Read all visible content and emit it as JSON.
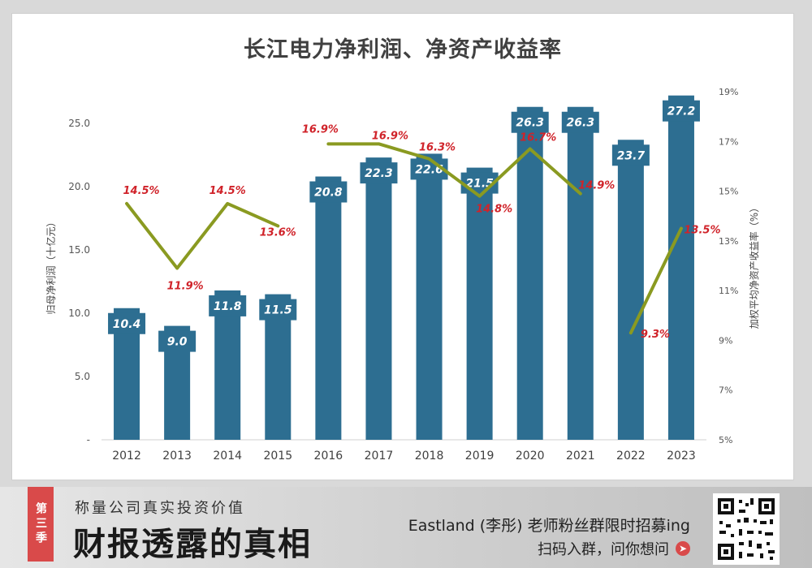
{
  "chart_data": {
    "type": "bar+line",
    "title": "长江电力净利润、净资产收益率",
    "categories": [
      "2012",
      "2013",
      "2014",
      "2015",
      "2016",
      "2017",
      "2018",
      "2019",
      "2020",
      "2021",
      "2022",
      "2023"
    ],
    "series": [
      {
        "name": "归母净利润（十亿元）",
        "type": "bar",
        "axis": "left",
        "values": [
          10.4,
          9.0,
          11.8,
          11.5,
          20.8,
          22.3,
          22.6,
          21.5,
          26.3,
          26.3,
          23.7,
          27.2
        ],
        "labels": [
          "10.4",
          "9.0",
          "11.8",
          "11.5",
          "20.8",
          "22.3",
          "22.6",
          "21.5",
          "26.3",
          "26.3",
          "23.7",
          "27.2"
        ],
        "color": "#2d6e91"
      },
      {
        "name": "加权平均净资产收益率（%）",
        "type": "line",
        "axis": "right",
        "segments": [
          {
            "start": 0,
            "values": [
              14.5,
              11.9,
              14.5,
              13.6
            ]
          },
          {
            "start": 4,
            "values": [
              16.9,
              16.9,
              16.3,
              14.8,
              16.7,
              14.9
            ]
          },
          {
            "start": 10,
            "values": [
              9.3,
              13.5
            ]
          }
        ],
        "labels": [
          "14.5%",
          "11.9%",
          "14.5%",
          "13.6%",
          "16.9%",
          "16.9%",
          "16.3%",
          "14.8%",
          "16.7%",
          "14.9%",
          "9.3%",
          "13.5%"
        ],
        "color": "#8a9a21",
        "label_color": "#d0232a"
      }
    ],
    "ylabel": "归母净利润（十亿元）",
    "y2label": "加权平均净资产收益率（%）",
    "ylim": [
      0,
      27.5
    ],
    "yticks": [
      "-",
      "5.0",
      "10.0",
      "15.0",
      "20.0",
      "25.0"
    ],
    "ytick_values": [
      0,
      5,
      10,
      15,
      20,
      25
    ],
    "y2lim": [
      5,
      19
    ],
    "y2ticks": [
      "5%",
      "7%",
      "9%",
      "11%",
      "13%",
      "15%",
      "17%",
      "19%"
    ],
    "y2tick_values": [
      5,
      7,
      9,
      11,
      13,
      15,
      17,
      19
    ],
    "grid": false,
    "legend": "none"
  },
  "footer": {
    "season_tag": "第三季",
    "subtitle": "称量公司真实投资价值",
    "brand": "财报透露的真相",
    "recruit": "Eastland (李彤) 老师粉丝群限时招募ing",
    "scan": "扫码入群，问你想问"
  },
  "icons": {
    "arrow": "arrow-right-circle-icon",
    "qr": "qr-code-icon"
  },
  "colors": {
    "bar": "#2d6e91",
    "line": "#8a9a21",
    "roe_label": "#d0232a",
    "accent": "#d94a4a"
  }
}
